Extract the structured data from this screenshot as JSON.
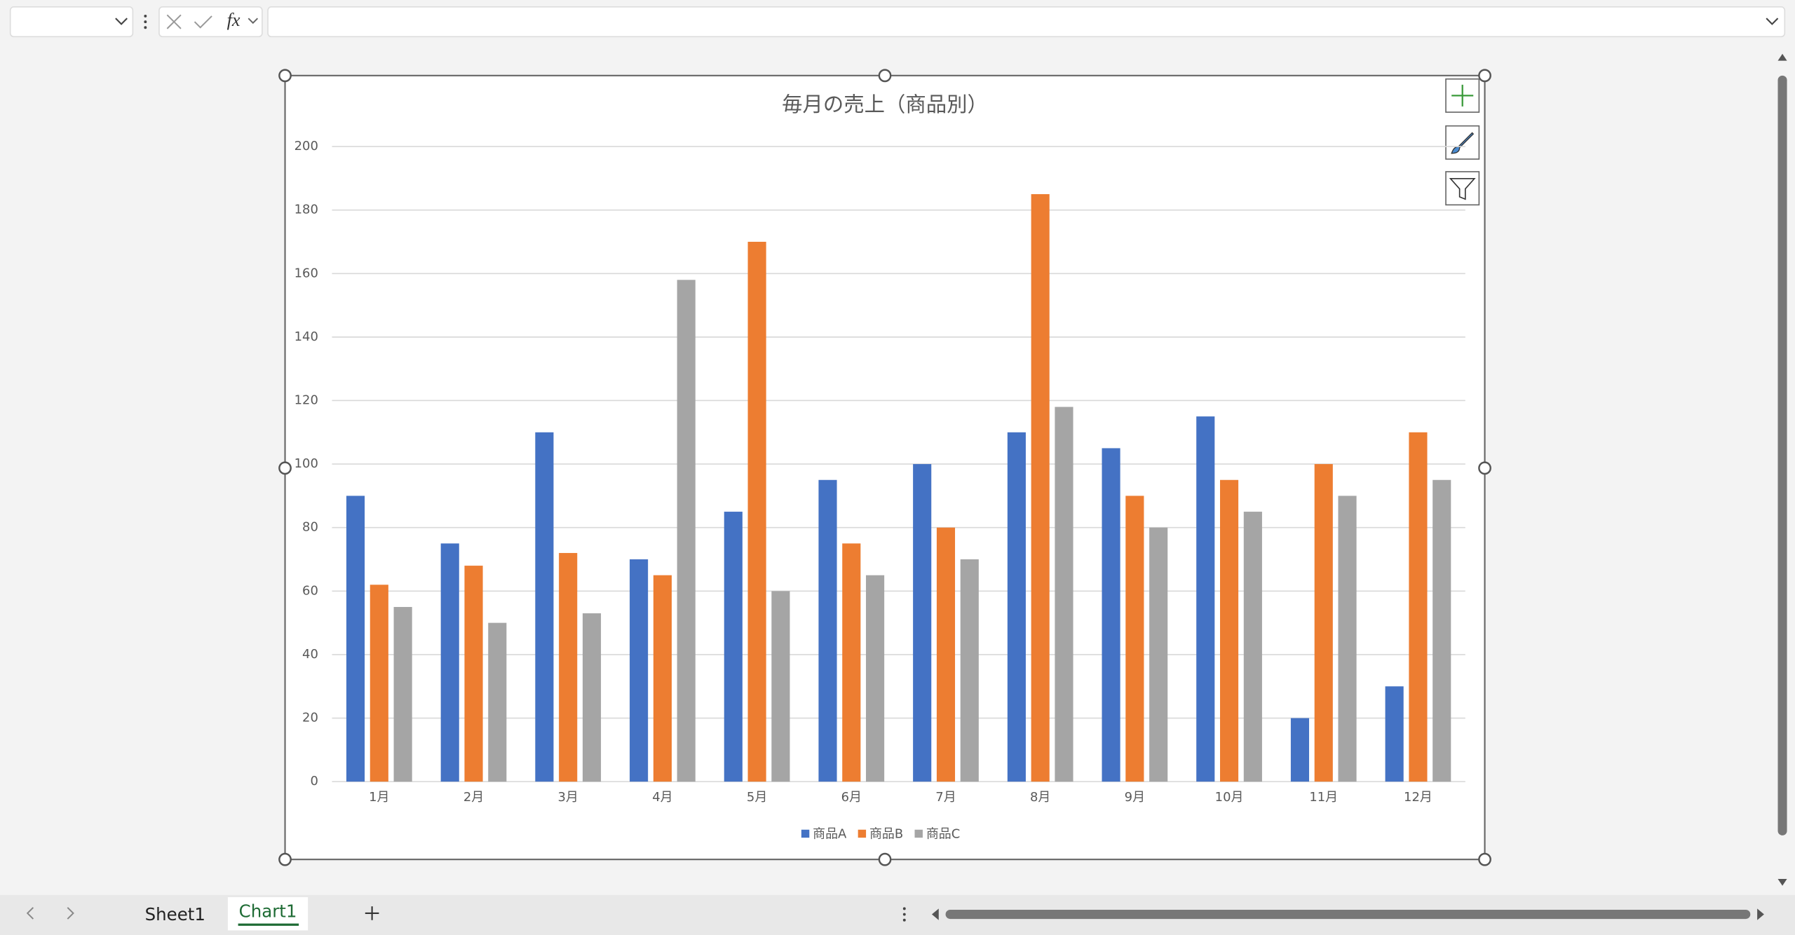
{
  "chart_data": {
    "type": "bar",
    "title": "毎月の売上（商品別）",
    "categories": [
      "1月",
      "2月",
      "3月",
      "4月",
      "5月",
      "6月",
      "7月",
      "8月",
      "9月",
      "10月",
      "11月",
      "12月"
    ],
    "series": [
      {
        "name": "商品A",
        "color": "#4472c4",
        "values": [
          90,
          75,
          110,
          70,
          85,
          95,
          100,
          110,
          105,
          115,
          20,
          30
        ]
      },
      {
        "name": "商品B",
        "color": "#ed7d31",
        "values": [
          62,
          68,
          72,
          65,
          170,
          75,
          80,
          185,
          90,
          95,
          100,
          110
        ]
      },
      {
        "name": "商品C",
        "color": "#a5a5a5",
        "values": [
          55,
          50,
          53,
          158,
          60,
          65,
          70,
          118,
          80,
          85,
          90,
          95
        ]
      }
    ],
    "ylim": [
      0,
      200
    ],
    "yticks": [
      0,
      20,
      40,
      60,
      80,
      100,
      120,
      140,
      160,
      180,
      200
    ],
    "grid": true,
    "legend": "bottom"
  },
  "ui": {
    "formula_icon": "fx",
    "sheets": [
      "Sheet1",
      "Chart1"
    ]
  }
}
